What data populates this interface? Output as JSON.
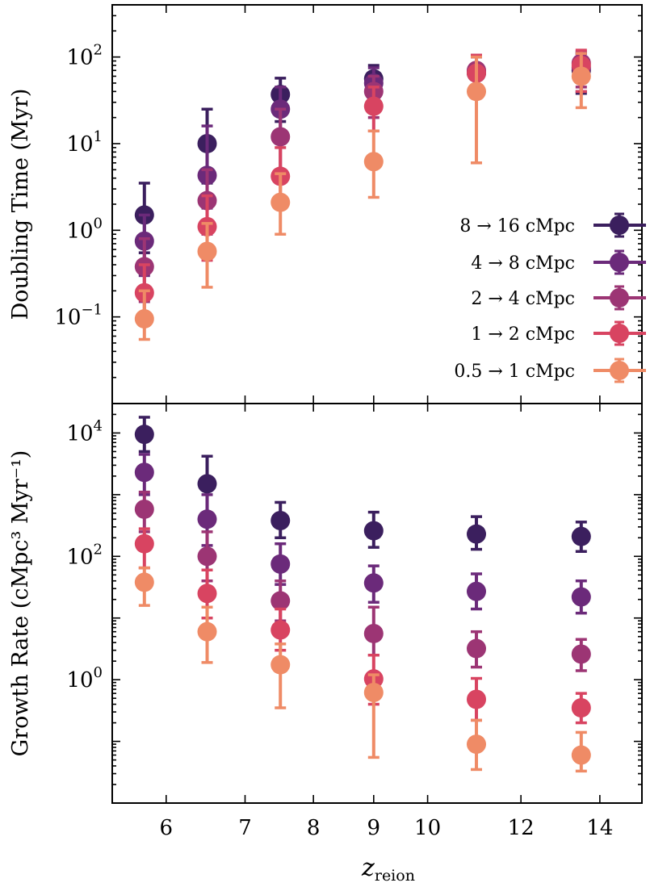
{
  "chart_data": {
    "type": "scatter",
    "x_label": "z",
    "x_label_sub": "reion",
    "x_ticks": [
      6,
      7,
      8,
      9,
      10,
      12,
      14
    ],
    "series": [
      {
        "name": "8 → 16 cMpc",
        "legend_label": "8 → 16 cMpc",
        "color": "#3b1f5e"
      },
      {
        "name": "4 → 8 cMpc",
        "legend_label": "4 → 8 cMpc",
        "color": "#6b2a7a"
      },
      {
        "name": "2 → 4 cMpc",
        "legend_label": "2 → 4 cMpc",
        "color": "#9c3574"
      },
      {
        "name": "1 → 2 cMpc",
        "legend_label": "1 → 2 cMpc",
        "color": "#d84461"
      },
      {
        "name": "0.5 → 1 cMpc",
        "legend_label": "0.5 → 1 cMpc",
        "color": "#ef8b66"
      }
    ],
    "panels": [
      {
        "id": "doubling",
        "ylabel": "Doubling Time (Myr)",
        "scale": "log",
        "ylim": [
          0.01,
          400
        ],
        "y_ticks": [
          {
            "label": "10",
            "exp": "−1",
            "value": 0.1
          },
          {
            "label": "10",
            "exp": "0",
            "value": 1
          },
          {
            "label": "10",
            "exp": "1",
            "value": 10
          },
          {
            "label": "10",
            "exp": "2",
            "value": 100
          }
        ],
        "data": [
          {
            "series": "8 → 16 cMpc",
            "points": [
              {
                "x": 5.75,
                "y": 1.5,
                "lo": 0.55,
                "hi": 3.5
              },
              {
                "x": 6.5,
                "y": 10,
                "lo": 3.5,
                "hi": 25
              },
              {
                "x": 7.5,
                "y": 37,
                "lo": 18,
                "hi": 57
              },
              {
                "x": 9.0,
                "y": 56,
                "lo": 35,
                "hi": 80
              },
              {
                "x": 11.0,
                "y": 65,
                "lo": 45,
                "hi": 100
              },
              {
                "x": 13.5,
                "y": 70,
                "lo": 38,
                "hi": 110
              }
            ]
          },
          {
            "series": "4 → 8 cMpc",
            "points": [
              {
                "x": 5.75,
                "y": 0.75,
                "lo": 0.3,
                "hi": 1.5
              },
              {
                "x": 6.5,
                "y": 4.3,
                "lo": 1.8,
                "hi": 16
              },
              {
                "x": 7.5,
                "y": 25,
                "lo": 12,
                "hi": 45
              },
              {
                "x": 9.0,
                "y": 50,
                "lo": 30,
                "hi": 75
              },
              {
                "x": 11.0,
                "y": 68,
                "lo": 40,
                "hi": 100
              },
              {
                "x": 13.5,
                "y": 75,
                "lo": 40,
                "hi": 110
              }
            ]
          },
          {
            "series": "2 → 4 cMpc",
            "points": [
              {
                "x": 5.75,
                "y": 0.38,
                "lo": 0.15,
                "hi": 0.8
              },
              {
                "x": 6.5,
                "y": 2.2,
                "lo": 0.9,
                "hi": 5
              },
              {
                "x": 7.5,
                "y": 12,
                "lo": 5,
                "hi": 25
              },
              {
                "x": 9.0,
                "y": 40,
                "lo": 20,
                "hi": 60
              },
              {
                "x": 11.0,
                "y": 70,
                "lo": 40,
                "hi": 105
              },
              {
                "x": 13.5,
                "y": 85,
                "lo": 45,
                "hi": 115
              }
            ]
          },
          {
            "series": "1 → 2 cMpc",
            "points": [
              {
                "x": 5.75,
                "y": 0.19,
                "lo": 0.08,
                "hi": 0.4
              },
              {
                "x": 6.5,
                "y": 1.1,
                "lo": 0.45,
                "hi": 2.5
              },
              {
                "x": 7.5,
                "y": 4.2,
                "lo": 1.8,
                "hi": 9
              },
              {
                "x": 9.0,
                "y": 27,
                "lo": 14,
                "hi": 45
              },
              {
                "x": 11.0,
                "y": 65,
                "lo": 35,
                "hi": 105
              },
              {
                "x": 13.5,
                "y": 80,
                "lo": 40,
                "hi": 120
              }
            ]
          },
          {
            "series": "0.5 → 1 cMpc",
            "points": [
              {
                "x": 5.75,
                "y": 0.095,
                "lo": 0.055,
                "hi": 0.2
              },
              {
                "x": 6.5,
                "y": 0.57,
                "lo": 0.22,
                "hi": 1.2
              },
              {
                "x": 7.5,
                "y": 2.1,
                "lo": 0.9,
                "hi": 4.5
              },
              {
                "x": 9.0,
                "y": 6.2,
                "lo": 2.4,
                "hi": 14
              },
              {
                "x": 11.0,
                "y": 40,
                "lo": 6,
                "hi": 100
              },
              {
                "x": 13.5,
                "y": 60,
                "lo": 26,
                "hi": 110
              }
            ]
          }
        ]
      },
      {
        "id": "growth",
        "ylabel": "Growth Rate (cMpc³ Myr⁻¹)",
        "scale": "log",
        "ylim": [
          0.01,
          30000
        ],
        "y_ticks": [
          {
            "label": "10",
            "exp": "0",
            "value": 1
          },
          {
            "label": "10",
            "exp": "2",
            "value": 100
          },
          {
            "label": "10",
            "exp": "4",
            "value": 10000
          }
        ],
        "data": [
          {
            "series": "8 → 16 cMpc",
            "points": [
              {
                "x": 5.75,
                "y": 9500,
                "lo": 5000,
                "hi": 18000
              },
              {
                "x": 6.5,
                "y": 1500,
                "lo": 500,
                "hi": 4200
              },
              {
                "x": 7.5,
                "y": 380,
                "lo": 200,
                "hi": 750
              },
              {
                "x": 9.0,
                "y": 260,
                "lo": 140,
                "hi": 520
              },
              {
                "x": 11.0,
                "y": 230,
                "lo": 130,
                "hi": 440
              },
              {
                "x": 13.5,
                "y": 210,
                "lo": 120,
                "hi": 360
              }
            ]
          },
          {
            "series": "4 → 8 cMpc",
            "points": [
              {
                "x": 5.75,
                "y": 2300,
                "lo": 1000,
                "hi": 4500
              },
              {
                "x": 6.5,
                "y": 400,
                "lo": 150,
                "hi": 1000
              },
              {
                "x": 7.5,
                "y": 75,
                "lo": 35,
                "hi": 160
              },
              {
                "x": 9.0,
                "y": 37,
                "lo": 18,
                "hi": 70
              },
              {
                "x": 11.0,
                "y": 27,
                "lo": 14,
                "hi": 52
              },
              {
                "x": 13.5,
                "y": 22,
                "lo": 12,
                "hi": 40
              }
            ]
          },
          {
            "series": "2 → 4 cMpc",
            "points": [
              {
                "x": 5.75,
                "y": 580,
                "lo": 250,
                "hi": 1100
              },
              {
                "x": 6.5,
                "y": 100,
                "lo": 40,
                "hi": 250
              },
              {
                "x": 7.5,
                "y": 19,
                "lo": 9,
                "hi": 40
              },
              {
                "x": 9.0,
                "y": 5.6,
                "lo": 2.5,
                "hi": 15
              },
              {
                "x": 11.0,
                "y": 3.2,
                "lo": 1.6,
                "hi": 6
              },
              {
                "x": 13.5,
                "y": 2.6,
                "lo": 1.4,
                "hi": 4.5
              }
            ]
          },
          {
            "series": "1 → 2 cMpc",
            "points": [
              {
                "x": 5.75,
                "y": 160,
                "lo": 65,
                "hi": 280
              },
              {
                "x": 6.5,
                "y": 25,
                "lo": 10,
                "hi": 60
              },
              {
                "x": 7.5,
                "y": 6.4,
                "lo": 3,
                "hi": 14
              },
              {
                "x": 9.0,
                "y": 1.03,
                "lo": 0.4,
                "hi": 2.5
              },
              {
                "x": 11.0,
                "y": 0.48,
                "lo": 0.22,
                "hi": 1.05
              },
              {
                "x": 13.5,
                "y": 0.35,
                "lo": 0.2,
                "hi": 0.6
              }
            ]
          },
          {
            "series": "0.5 → 1 cMpc",
            "points": [
              {
                "x": 5.75,
                "y": 38,
                "lo": 16,
                "hi": 65
              },
              {
                "x": 6.5,
                "y": 6,
                "lo": 1.9,
                "hi": 15
              },
              {
                "x": 7.5,
                "y": 1.75,
                "lo": 0.35,
                "hi": 3.8
              },
              {
                "x": 9.0,
                "y": 0.62,
                "lo": 0.055,
                "hi": 1.2
              },
              {
                "x": 11.0,
                "y": 0.09,
                "lo": 0.035,
                "hi": 0.22
              },
              {
                "x": 13.5,
                "y": 0.06,
                "lo": 0.033,
                "hi": 0.14
              }
            ]
          }
        ]
      }
    ]
  }
}
